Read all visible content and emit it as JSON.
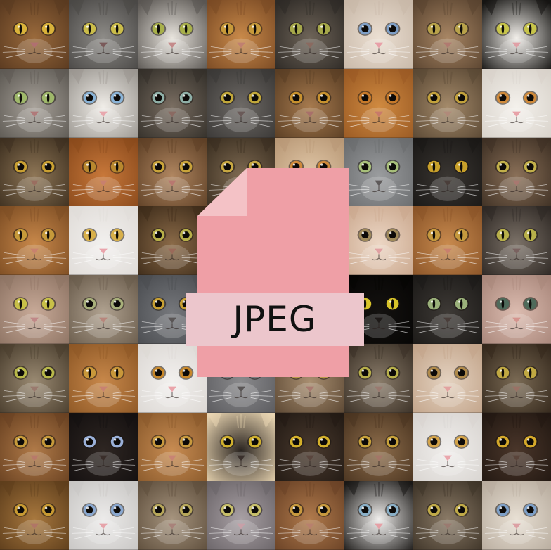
{
  "file_badge": {
    "label": "JPEG",
    "icon": "file-icon",
    "colors": {
      "sheet": "#ef9fa6",
      "fold": "#f4c2c6",
      "band": "#ecc6cc",
      "text": "#111111"
    }
  },
  "mosaic": {
    "rows": 8,
    "columns": 8,
    "subject": "cat-faces",
    "tiles": [
      {
        "fur": "#9a6a3c",
        "accent": "#5a3a20",
        "eyes": "#d9b23a",
        "pupil": "slit",
        "nose": "#b07070"
      },
      {
        "fur": "#8e8c88",
        "accent": "#4a4846",
        "eyes": "#cbbd4a",
        "pupil": "slit",
        "nose": "#7a5a5a"
      },
      {
        "fur": "#e8e4dd",
        "accent": "#5a5652",
        "eyes": "#a8b04a",
        "pupil": "slit",
        "nose": "#c48a8a"
      },
      {
        "fur": "#c98a4a",
        "accent": "#7a4a24",
        "eyes": "#c79a3a",
        "pupil": "slit",
        "nose": "#c08070"
      },
      {
        "fur": "#6e6458",
        "accent": "#2e2a26",
        "eyes": "#a6a84a",
        "pupil": "slit",
        "nose": "#8a6a60"
      },
      {
        "fur": "#ebdfd2",
        "accent": "#c8b8a8",
        "eyes": "#7fa0c8",
        "pupil": "round",
        "nose": "#e8a0a8"
      },
      {
        "fur": "#a88664",
        "accent": "#5a4430",
        "eyes": "#b8a24a",
        "pupil": "slit",
        "nose": "#b07a70"
      },
      {
        "fur": "#f2efea",
        "accent": "#151412",
        "eyes": "#c7c44a",
        "pupil": "slit",
        "nose": "#e0a0a6"
      },
      {
        "fur": "#a8a29a",
        "accent": "#5e5a54",
        "eyes": "#9fb86a",
        "pupil": "slit",
        "nose": "#b07a7a"
      },
      {
        "fur": "#f0ede8",
        "accent": "#9a9690",
        "eyes": "#8ab4d8",
        "pupil": "round",
        "nose": "#e8a8ae"
      },
      {
        "fur": "#7a6e62",
        "accent": "#34302a",
        "eyes": "#8fb0a8",
        "pupil": "round",
        "nose": "#8a6a62"
      },
      {
        "fur": "#6e6a66",
        "accent": "#3a3836",
        "eyes": "#c2a83a",
        "pupil": "round",
        "nose": "#6a5a58"
      },
      {
        "fur": "#a67a4e",
        "accent": "#5a3e24",
        "eyes": "#c8922e",
        "pupil": "round",
        "nose": "#a8706a"
      },
      {
        "fur": "#d08a40",
        "accent": "#9a5a24",
        "eyes": "#c77a2a",
        "pupil": "round",
        "nose": "#c87a6a"
      },
      {
        "fur": "#a48a6a",
        "accent": "#5a4834",
        "eyes": "#c3a23c",
        "pupil": "round",
        "nose": "#b08a7a"
      },
      {
        "fur": "#f4f1ec",
        "accent": "#d8d2ca",
        "eyes": "#d08a3a",
        "pupil": "round",
        "nose": "#e8a2a8"
      },
      {
        "fur": "#8e7656",
        "accent": "#3e3020",
        "eyes": "#c9a032",
        "pupil": "round",
        "nose": "#9a6e60"
      },
      {
        "fur": "#c8783a",
        "accent": "#8a4a1c",
        "eyes": "#b8882e",
        "pupil": "slit",
        "nose": "#c8806e"
      },
      {
        "fur": "#b08660",
        "accent": "#5e4026",
        "eyes": "#c9a43a",
        "pupil": "round",
        "nose": "#b87870"
      },
      {
        "fur": "#7e6a52",
        "accent": "#3a2e20",
        "eyes": "#c8a842",
        "pupil": "round",
        "nose": "#9a7066"
      },
      {
        "fur": "#e2c8a8",
        "accent": "#b89876",
        "eyes": "#d08a3a",
        "pupil": "round",
        "nose": "#d89a90"
      },
      {
        "fur": "#9a9c9e",
        "accent": "#6a6c6e",
        "eyes": "#a8c07a",
        "pupil": "round",
        "nose": "#5e5a5a"
      },
      {
        "fur": "#3a3632",
        "accent": "#1a1816",
        "eyes": "#c8a02a",
        "pupil": "slit",
        "nose": "#4a3e3a"
      },
      {
        "fur": "#8a7058",
        "accent": "#3e3024",
        "eyes": "#c2b04a",
        "pupil": "round",
        "nose": "#a87870"
      },
      {
        "fur": "#c8884a",
        "accent": "#7e4e24",
        "eyes": "#c69a3a",
        "pupil": "slit",
        "nose": "#c8826e"
      },
      {
        "fur": "#f2f0ee",
        "accent": "#e0dcd8",
        "eyes": "#d8b04a",
        "pupil": "slit",
        "nose": "#eaa4ac"
      },
      {
        "fur": "#8a6a48",
        "accent": "#3e2c1a",
        "eyes": "#b8b048",
        "pupil": "round",
        "nose": "#9a6a5a"
      },
      {
        "fur": "#7a6650",
        "accent": "#3a2e22",
        "eyes": "#c0a040",
        "pupil": "round",
        "nose": "#9a726a"
      },
      {
        "fur": "#8a7456",
        "accent": "#3e3222",
        "eyes": "#c8a23e",
        "pupil": "round",
        "nose": "#9a7464"
      },
      {
        "fur": "#ecd6c4",
        "accent": "#caa88e",
        "eyes": "#a08a5a",
        "pupil": "round",
        "nose": "#e0a0a2"
      },
      {
        "fur": "#c88a4e",
        "accent": "#8a5428",
        "eyes": "#c69a3e",
        "pupil": "slit",
        "nose": "#c8806e"
      },
      {
        "fur": "#7c7268",
        "accent": "#2e2824",
        "eyes": "#b8b04a",
        "pupil": "slit",
        "nose": "#7a6260"
      },
      {
        "fur": "#c8aa98",
        "accent": "#8e7464",
        "eyes": "#c8c048",
        "pupil": "slit",
        "nose": "#c08888"
      },
      {
        "fur": "#b0a290",
        "accent": "#6a5c4c",
        "eyes": "#a8b07a",
        "pupil": "round",
        "nose": "#b8867c"
      },
      {
        "fur": "#76787c",
        "accent": "#4a4c50",
        "eyes": "#c8a032",
        "pupil": "round",
        "nose": "#5a5656"
      },
      {
        "fur": "#6a625a",
        "accent": "#2e2a26",
        "eyes": "#b8a83a",
        "pupil": "round",
        "nose": "#7a6a64"
      },
      {
        "fur": "#6e5e4c",
        "accent": "#2e261c",
        "eyes": "#c09e3a",
        "pupil": "round",
        "nose": "#8a6a5e"
      },
      {
        "fur": "#141210",
        "accent": "#060504",
        "eyes": "#d8c42a",
        "pupil": "slit",
        "nose": "#1e1a18"
      },
      {
        "fur": "#3e3a36",
        "accent": "#1c1a18",
        "eyes": "#9ab07a",
        "pupil": "slit",
        "nose": "#4a3e3a"
      },
      {
        "fur": "#dcbcb0",
        "accent": "#a8867a",
        "eyes": "#4e6a5a",
        "pupil": "slit",
        "nose": "#d4948e"
      },
      {
        "fur": "#9a8a72",
        "accent": "#4a3e2e",
        "eyes": "#b8b84a",
        "pupil": "round",
        "nose": "#9a7a6e"
      },
      {
        "fur": "#c8884a",
        "accent": "#8e5826",
        "eyes": "#c9983a",
        "pupil": "slit",
        "nose": "#c88272"
      },
      {
        "fur": "#f2f0ee",
        "accent": "#dcd8d4",
        "eyes": "#c8882a",
        "pupil": "round",
        "nose": "#eaa4aa"
      },
      {
        "fur": "#8a8a8c",
        "accent": "#5a5a5e",
        "eyes": "#7e7e80",
        "pupil": "round",
        "nose": "#5a5656"
      },
      {
        "fur": "#a88e70",
        "accent": "#5a4632",
        "eyes": "#b89a4a",
        "pupil": "round",
        "nose": "#a87a70"
      },
      {
        "fur": "#8a7c6a",
        "accent": "#3a3026",
        "eyes": "#b8b04a",
        "pupil": "round",
        "nose": "#9a7a70"
      },
      {
        "fur": "#e4d2c0",
        "accent": "#c2a48a",
        "eyes": "#b08a4a",
        "pupil": "round",
        "nose": "#e2a2a0"
      },
      {
        "fur": "#7a6a54",
        "accent": "#34281c",
        "eyes": "#c0a842",
        "pupil": "slit",
        "nose": "#9a7266"
      },
      {
        "fur": "#b07a48",
        "accent": "#6a4222",
        "eyes": "#c69a3a",
        "pupil": "round",
        "nose": "#b87a6a"
      },
      {
        "fur": "#2e2622",
        "accent": "#141010",
        "eyes": "#9ab0d8",
        "pupil": "round",
        "nose": "#3a2e2a"
      },
      {
        "fur": "#c88c52",
        "accent": "#8a5a2c",
        "eyes": "#c89a3e",
        "pupil": "round",
        "nose": "#c88474"
      },
      {
        "fur": "#2a2420",
        "accent": "#ead6b2",
        "eyes": "#d0b02e",
        "pupil": "round",
        "nose": "#3a302c"
      },
      {
        "fur": "#4a3a2e",
        "accent": "#221a14",
        "eyes": "#d4b02a",
        "pupil": "round",
        "nose": "#5a463e"
      },
      {
        "fur": "#8e6e4c",
        "accent": "#4a3420",
        "eyes": "#c8a23a",
        "pupil": "round",
        "nose": "#a47668"
      },
      {
        "fur": "#f0eeec",
        "accent": "#d8d4d0",
        "eyes": "#d4a44a",
        "pupil": "round",
        "nose": "#eaa6ac"
      },
      {
        "fur": "#4a362a",
        "accent": "#221812",
        "eyes": "#d4a82a",
        "pupil": "round",
        "nose": "#5a443a"
      },
      {
        "fur": "#a8783e",
        "accent": "#5e3e1c",
        "eyes": "#c89a32",
        "pupil": "round",
        "nose": "#b07666"
      },
      {
        "fur": "#ecebea",
        "accent": "#c8c6c4",
        "eyes": "#8aa8d0",
        "pupil": "round",
        "nose": "#e6a4aa"
      },
      {
        "fur": "#a6947e",
        "accent": "#5e4e3c",
        "eyes": "#b8a85a",
        "pupil": "round",
        "nose": "#a8827a"
      },
      {
        "fur": "#a8a0a4",
        "accent": "#6a6468",
        "eyes": "#c8c06a",
        "pupil": "round",
        "nose": "#c8a0a8"
      },
      {
        "fur": "#b07a4c",
        "accent": "#6a4226",
        "eyes": "#c89a3e",
        "pupil": "round",
        "nose": "#b8806e"
      },
      {
        "fur": "#f0eeec",
        "accent": "#1a1816",
        "eyes": "#8ab0c8",
        "pupil": "round",
        "nose": "#e6a0a6"
      },
      {
        "fur": "#8a7a66",
        "accent": "#3e3428",
        "eyes": "#c0aa48",
        "pupil": "round",
        "nose": "#9a7a70"
      },
      {
        "fur": "#e8e0d4",
        "accent": "#b8ac9e",
        "eyes": "#7ea0c8",
        "pupil": "round",
        "nose": "#dca0a4"
      }
    ]
  }
}
